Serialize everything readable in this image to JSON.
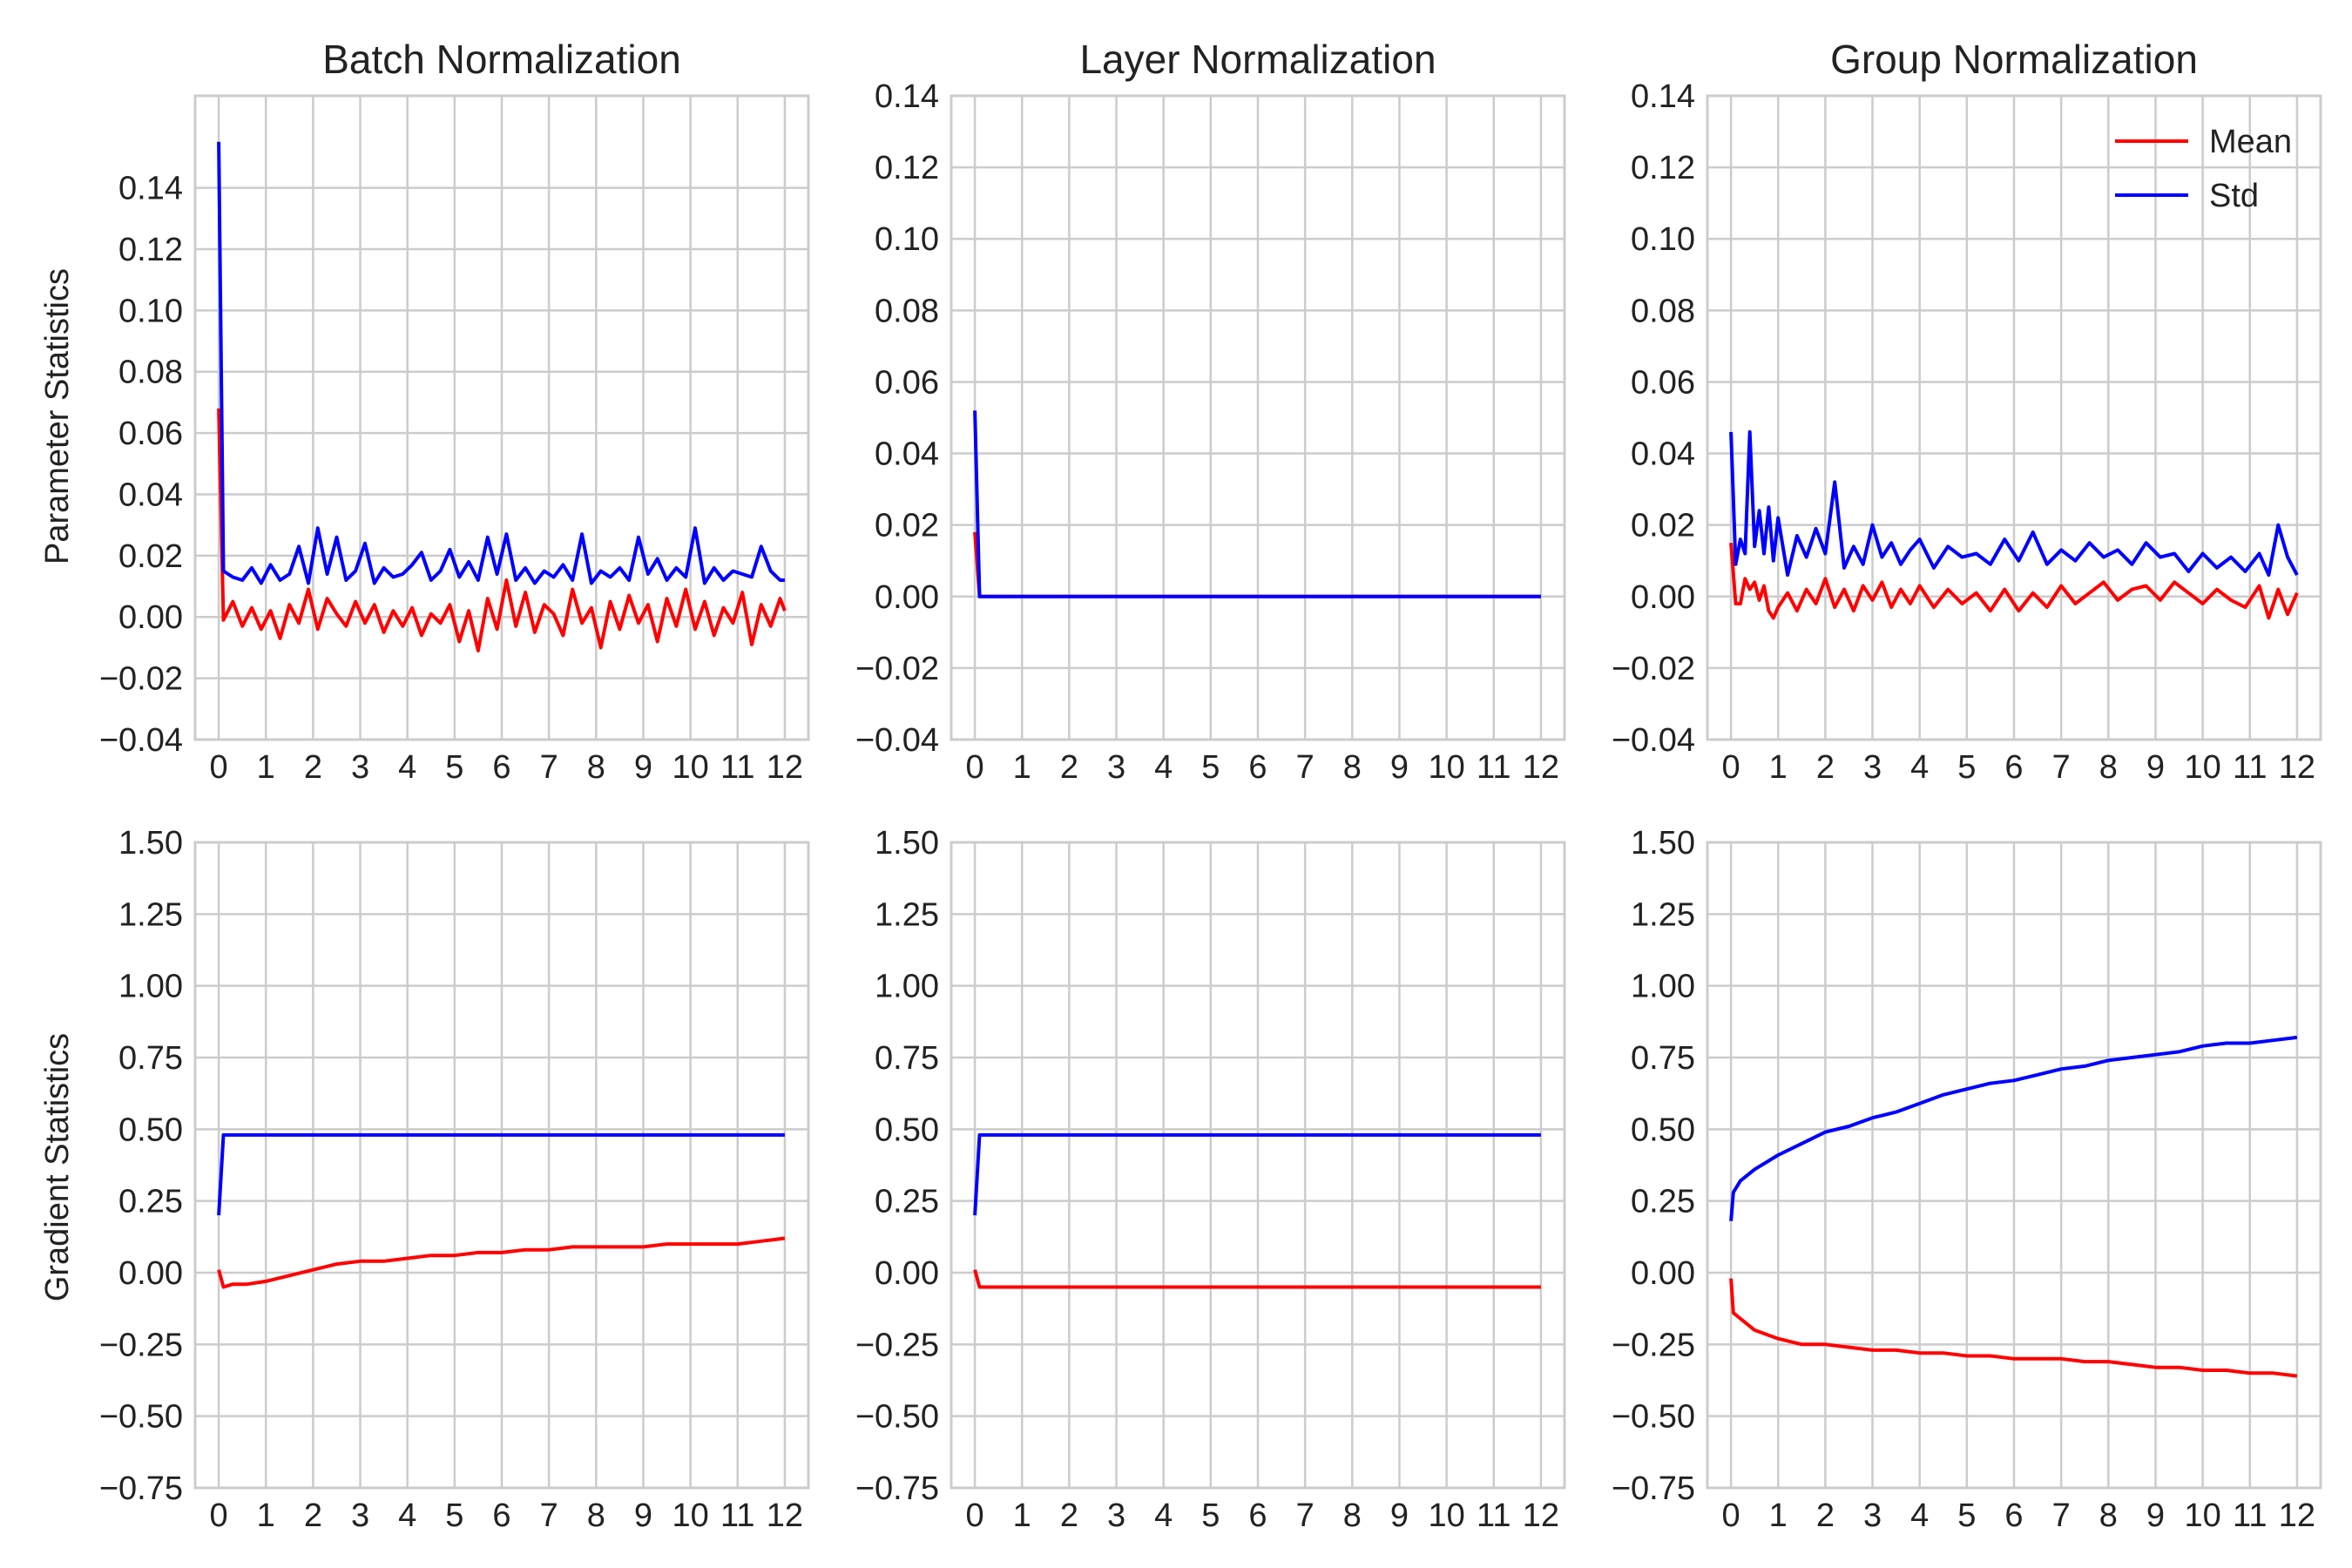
{
  "colors": {
    "mean": "#ff0000",
    "std": "#0000ff",
    "grid": "#cccccc",
    "frame": "#cccccc",
    "text": "#222222"
  },
  "legend": {
    "placement": "top-right",
    "entries": [
      {
        "label": "Mean",
        "color": "#ff0000"
      },
      {
        "label": "Std",
        "color": "#0000ff"
      }
    ]
  },
  "row_labels": [
    "Parameter Statistics",
    "Gradient Statistics"
  ],
  "chart_data": [
    {
      "type": "line",
      "title": "Batch Normalization",
      "ylabel": "Parameter Statistics",
      "xlabel": "",
      "xlim": [
        -0.5,
        12.5
      ],
      "ylim": [
        -0.04,
        0.17
      ],
      "grid": true,
      "xticks": [
        "0",
        "1",
        "2",
        "3",
        "4",
        "5",
        "6",
        "7",
        "8",
        "9",
        "10",
        "11",
        "12"
      ],
      "yticks": [
        "−0.04",
        "−0.02",
        "0.00",
        "0.02",
        "0.04",
        "0.06",
        "0.08",
        "0.10",
        "0.12",
        "0.14"
      ],
      "ytick_values": [
        -0.04,
        -0.02,
        0.0,
        0.02,
        0.04,
        0.06,
        0.08,
        0.1,
        0.12,
        0.14
      ],
      "series": [
        {
          "name": "Mean",
          "color": "#ff0000",
          "x": [
            0,
            0.1,
            0.3,
            0.5,
            0.7,
            0.9,
            1.1,
            1.3,
            1.5,
            1.7,
            1.9,
            2.1,
            2.3,
            2.5,
            2.7,
            2.9,
            3.1,
            3.3,
            3.5,
            3.7,
            3.9,
            4.1,
            4.3,
            4.5,
            4.7,
            4.9,
            5.1,
            5.3,
            5.5,
            5.7,
            5.9,
            6.1,
            6.3,
            6.5,
            6.7,
            6.9,
            7.1,
            7.3,
            7.5,
            7.7,
            7.9,
            8.1,
            8.3,
            8.5,
            8.7,
            8.9,
            9.1,
            9.3,
            9.5,
            9.7,
            9.9,
            10.1,
            10.3,
            10.5,
            10.7,
            10.9,
            11.1,
            11.3,
            11.5,
            11.7,
            11.9,
            12
          ],
          "y": [
            0.068,
            -0.001,
            0.005,
            -0.003,
            0.003,
            -0.004,
            0.002,
            -0.007,
            0.004,
            -0.002,
            0.009,
            -0.004,
            0.006,
            0.001,
            -0.003,
            0.005,
            -0.002,
            0.004,
            -0.005,
            0.002,
            -0.003,
            0.003,
            -0.006,
            0.001,
            -0.002,
            0.004,
            -0.008,
            0.002,
            -0.011,
            0.006,
            -0.004,
            0.012,
            -0.003,
            0.008,
            -0.005,
            0.004,
            0.001,
            -0.006,
            0.009,
            -0.002,
            0.003,
            -0.01,
            0.005,
            -0.004,
            0.007,
            -0.002,
            0.004,
            -0.008,
            0.006,
            -0.003,
            0.009,
            -0.004,
            0.005,
            -0.006,
            0.003,
            -0.002,
            0.008,
            -0.009,
            0.004,
            -0.003,
            0.006,
            0.002
          ]
        },
        {
          "name": "Std",
          "color": "#0000ff",
          "x": [
            0,
            0.1,
            0.3,
            0.5,
            0.7,
            0.9,
            1.1,
            1.3,
            1.5,
            1.7,
            1.9,
            2.1,
            2.3,
            2.5,
            2.7,
            2.9,
            3.1,
            3.3,
            3.5,
            3.7,
            3.9,
            4.1,
            4.3,
            4.5,
            4.7,
            4.9,
            5.1,
            5.3,
            5.5,
            5.7,
            5.9,
            6.1,
            6.3,
            6.5,
            6.7,
            6.9,
            7.1,
            7.3,
            7.5,
            7.7,
            7.9,
            8.1,
            8.3,
            8.5,
            8.7,
            8.9,
            9.1,
            9.3,
            9.5,
            9.7,
            9.9,
            10.1,
            10.3,
            10.5,
            10.7,
            10.9,
            11.1,
            11.3,
            11.5,
            11.7,
            11.9,
            12
          ],
          "y": [
            0.155,
            0.015,
            0.013,
            0.012,
            0.016,
            0.011,
            0.017,
            0.012,
            0.014,
            0.023,
            0.011,
            0.029,
            0.014,
            0.026,
            0.012,
            0.015,
            0.024,
            0.011,
            0.016,
            0.013,
            0.014,
            0.017,
            0.021,
            0.012,
            0.015,
            0.022,
            0.013,
            0.018,
            0.012,
            0.026,
            0.014,
            0.027,
            0.012,
            0.016,
            0.011,
            0.015,
            0.013,
            0.017,
            0.012,
            0.027,
            0.011,
            0.015,
            0.013,
            0.016,
            0.012,
            0.026,
            0.014,
            0.019,
            0.012,
            0.016,
            0.013,
            0.029,
            0.011,
            0.016,
            0.012,
            0.015,
            0.014,
            0.013,
            0.023,
            0.015,
            0.012,
            0.012
          ]
        }
      ]
    },
    {
      "type": "line",
      "title": "Layer Normalization",
      "ylabel": "",
      "xlabel": "",
      "xlim": [
        -0.5,
        12.5
      ],
      "ylim": [
        -0.04,
        0.14
      ],
      "grid": true,
      "xticks": [
        "0",
        "1",
        "2",
        "3",
        "4",
        "5",
        "6",
        "7",
        "8",
        "9",
        "10",
        "11",
        "12"
      ],
      "yticks": [
        "−0.04",
        "−0.02",
        "0.00",
        "0.02",
        "0.04",
        "0.06",
        "0.08",
        "0.10",
        "0.12",
        "0.14"
      ],
      "ytick_values": [
        -0.04,
        -0.02,
        0.0,
        0.02,
        0.04,
        0.06,
        0.08,
        0.1,
        0.12,
        0.14
      ],
      "series": [
        {
          "name": "Mean",
          "color": "#ff0000",
          "x": [
            0,
            0.1,
            12
          ],
          "y": [
            0.018,
            0.0,
            0.0
          ]
        },
        {
          "name": "Std",
          "color": "#0000ff",
          "x": [
            0,
            0.1,
            12
          ],
          "y": [
            0.052,
            0.0,
            0.0
          ]
        }
      ]
    },
    {
      "type": "line",
      "title": "Group Normalization",
      "ylabel": "",
      "xlabel": "",
      "xlim": [
        -0.5,
        12.5
      ],
      "ylim": [
        -0.04,
        0.14
      ],
      "grid": true,
      "legend": "top-right",
      "xticks": [
        "0",
        "1",
        "2",
        "3",
        "4",
        "5",
        "6",
        "7",
        "8",
        "9",
        "10",
        "11",
        "12"
      ],
      "yticks": [
        "−0.04",
        "−0.02",
        "0.00",
        "0.02",
        "0.04",
        "0.06",
        "0.08",
        "0.10",
        "0.12",
        "0.14"
      ],
      "ytick_values": [
        -0.04,
        -0.02,
        0.0,
        0.02,
        0.04,
        0.06,
        0.08,
        0.1,
        0.12,
        0.14
      ],
      "series": [
        {
          "name": "Mean",
          "color": "#ff0000",
          "x": [
            0,
            0.1,
            0.2,
            0.3,
            0.4,
            0.5,
            0.6,
            0.7,
            0.8,
            0.9,
            1.0,
            1.2,
            1.4,
            1.6,
            1.8,
            2.0,
            2.2,
            2.4,
            2.6,
            2.8,
            3.0,
            3.2,
            3.4,
            3.6,
            3.8,
            4.0,
            4.3,
            4.6,
            4.9,
            5.2,
            5.5,
            5.8,
            6.1,
            6.4,
            6.7,
            7.0,
            7.3,
            7.6,
            7.9,
            8.2,
            8.5,
            8.8,
            9.1,
            9.4,
            9.7,
            10.0,
            10.3,
            10.6,
            10.9,
            11.2,
            11.4,
            11.6,
            11.8,
            12
          ],
          "y": [
            0.015,
            -0.002,
            -0.002,
            0.005,
            0.002,
            0.004,
            -0.001,
            0.003,
            -0.004,
            -0.006,
            -0.003,
            0.001,
            -0.004,
            0.002,
            -0.002,
            0.005,
            -0.003,
            0.002,
            -0.004,
            0.003,
            -0.001,
            0.004,
            -0.003,
            0.002,
            -0.002,
            0.003,
            -0.003,
            0.002,
            -0.002,
            0.001,
            -0.004,
            0.002,
            -0.004,
            0.001,
            -0.003,
            0.003,
            -0.002,
            0.001,
            0.004,
            -0.001,
            0.002,
            0.003,
            -0.001,
            0.004,
            0.001,
            -0.002,
            0.002,
            -0.001,
            -0.003,
            0.003,
            -0.006,
            0.002,
            -0.005,
            0.001
          ]
        },
        {
          "name": "Std",
          "color": "#0000ff",
          "x": [
            0,
            0.1,
            0.2,
            0.3,
            0.4,
            0.5,
            0.6,
            0.7,
            0.8,
            0.9,
            1.0,
            1.2,
            1.4,
            1.6,
            1.8,
            2.0,
            2.2,
            2.4,
            2.6,
            2.8,
            3.0,
            3.2,
            3.4,
            3.6,
            3.8,
            4.0,
            4.3,
            4.6,
            4.9,
            5.2,
            5.5,
            5.8,
            6.1,
            6.4,
            6.7,
            7.0,
            7.3,
            7.6,
            7.9,
            8.2,
            8.5,
            8.8,
            9.1,
            9.4,
            9.7,
            10.0,
            10.3,
            10.6,
            10.9,
            11.2,
            11.4,
            11.6,
            11.8,
            12
          ],
          "y": [
            0.046,
            0.009,
            0.016,
            0.012,
            0.046,
            0.014,
            0.024,
            0.012,
            0.025,
            0.01,
            0.022,
            0.006,
            0.017,
            0.011,
            0.019,
            0.012,
            0.032,
            0.008,
            0.014,
            0.009,
            0.02,
            0.011,
            0.015,
            0.009,
            0.013,
            0.016,
            0.008,
            0.014,
            0.011,
            0.012,
            0.009,
            0.016,
            0.01,
            0.018,
            0.009,
            0.013,
            0.01,
            0.015,
            0.011,
            0.013,
            0.009,
            0.015,
            0.011,
            0.012,
            0.007,
            0.012,
            0.008,
            0.011,
            0.007,
            0.012,
            0.006,
            0.02,
            0.011,
            0.006
          ]
        }
      ]
    },
    {
      "type": "line",
      "title": "",
      "ylabel": "Gradient Statistics",
      "xlabel": "",
      "xlim": [
        -0.5,
        12.5
      ],
      "ylim": [
        -0.75,
        1.5
      ],
      "grid": true,
      "xticks": [
        "0",
        "1",
        "2",
        "3",
        "4",
        "5",
        "6",
        "7",
        "8",
        "9",
        "10",
        "11",
        "12"
      ],
      "yticks": [
        "−0.75",
        "−0.50",
        "−0.25",
        "0.00",
        "0.25",
        "0.50",
        "0.75",
        "1.00",
        "1.25",
        "1.50"
      ],
      "ytick_values": [
        -0.75,
        -0.5,
        -0.25,
        0.0,
        0.25,
        0.5,
        0.75,
        1.0,
        1.25,
        1.5
      ],
      "series": [
        {
          "name": "Mean",
          "color": "#ff0000",
          "x": [
            0,
            0.1,
            0.3,
            0.6,
            1,
            1.5,
            2,
            2.5,
            3,
            3.5,
            4,
            4.5,
            5,
            5.5,
            6,
            6.5,
            7,
            7.5,
            8,
            8.5,
            9,
            9.5,
            10,
            10.5,
            11,
            11.5,
            12
          ],
          "y": [
            0.01,
            -0.05,
            -0.04,
            -0.04,
            -0.03,
            -0.01,
            0.01,
            0.03,
            0.04,
            0.04,
            0.05,
            0.06,
            0.06,
            0.07,
            0.07,
            0.08,
            0.08,
            0.09,
            0.09,
            0.09,
            0.09,
            0.1,
            0.1,
            0.1,
            0.1,
            0.11,
            0.12
          ]
        },
        {
          "name": "Std",
          "color": "#0000ff",
          "x": [
            0,
            0.1,
            0.3,
            12
          ],
          "y": [
            0.2,
            0.48,
            0.48,
            0.48
          ]
        }
      ]
    },
    {
      "type": "line",
      "title": "",
      "ylabel": "",
      "xlabel": "",
      "xlim": [
        -0.5,
        12.5
      ],
      "ylim": [
        -0.75,
        1.5
      ],
      "grid": true,
      "xticks": [
        "0",
        "1",
        "2",
        "3",
        "4",
        "5",
        "6",
        "7",
        "8",
        "9",
        "10",
        "11",
        "12"
      ],
      "yticks": [
        "−0.75",
        "−0.50",
        "−0.25",
        "0.00",
        "0.25",
        "0.50",
        "0.75",
        "1.00",
        "1.25",
        "1.50"
      ],
      "ytick_values": [
        -0.75,
        -0.5,
        -0.25,
        0.0,
        0.25,
        0.5,
        0.75,
        1.0,
        1.25,
        1.5
      ],
      "series": [
        {
          "name": "Mean",
          "color": "#ff0000",
          "x": [
            0,
            0.1,
            12
          ],
          "y": [
            0.01,
            -0.05,
            -0.05
          ]
        },
        {
          "name": "Std",
          "color": "#0000ff",
          "x": [
            0,
            0.1,
            12
          ],
          "y": [
            0.2,
            0.48,
            0.48
          ]
        }
      ]
    },
    {
      "type": "line",
      "title": "",
      "ylabel": "",
      "xlabel": "",
      "xlim": [
        -0.5,
        12.5
      ],
      "ylim": [
        -0.75,
        1.5
      ],
      "grid": true,
      "xticks": [
        "0",
        "1",
        "2",
        "3",
        "4",
        "5",
        "6",
        "7",
        "8",
        "9",
        "10",
        "11",
        "12"
      ],
      "yticks": [
        "−0.75",
        "−0.50",
        "−0.25",
        "0.00",
        "0.25",
        "0.50",
        "0.75",
        "1.00",
        "1.25",
        "1.50"
      ],
      "ytick_values": [
        -0.75,
        -0.5,
        -0.25,
        0.0,
        0.25,
        0.5,
        0.75,
        1.0,
        1.25,
        1.5
      ],
      "series": [
        {
          "name": "Mean",
          "color": "#ff0000",
          "x": [
            0,
            0.05,
            0.2,
            0.5,
            1,
            1.5,
            2,
            2.5,
            3,
            3.5,
            4,
            4.5,
            5,
            5.5,
            6,
            6.5,
            7,
            7.5,
            8,
            8.5,
            9,
            9.5,
            10,
            10.5,
            11,
            11.5,
            12
          ],
          "y": [
            -0.02,
            -0.14,
            -0.16,
            -0.2,
            -0.23,
            -0.25,
            -0.25,
            -0.26,
            -0.27,
            -0.27,
            -0.28,
            -0.28,
            -0.29,
            -0.29,
            -0.3,
            -0.3,
            -0.3,
            -0.31,
            -0.31,
            -0.32,
            -0.33,
            -0.33,
            -0.34,
            -0.34,
            -0.35,
            -0.35,
            -0.36
          ]
        },
        {
          "name": "Std",
          "color": "#0000ff",
          "x": [
            0,
            0.05,
            0.2,
            0.5,
            1,
            1.5,
            2,
            2.5,
            3,
            3.5,
            4,
            4.5,
            5,
            5.5,
            6,
            6.5,
            7,
            7.5,
            8,
            8.5,
            9,
            9.5,
            10,
            10.5,
            11,
            11.5,
            12
          ],
          "y": [
            0.18,
            0.28,
            0.32,
            0.36,
            0.41,
            0.45,
            0.49,
            0.51,
            0.54,
            0.56,
            0.59,
            0.62,
            0.64,
            0.66,
            0.67,
            0.69,
            0.71,
            0.72,
            0.74,
            0.75,
            0.76,
            0.77,
            0.79,
            0.8,
            0.8,
            0.81,
            0.82
          ]
        }
      ]
    }
  ]
}
